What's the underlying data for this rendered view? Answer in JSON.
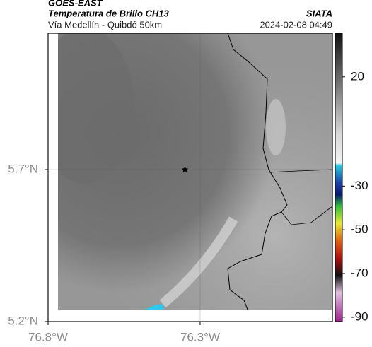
{
  "header": {
    "source": "GOES-EAST",
    "title": "Temperatura de Brillo CH13",
    "organization": "SIATA",
    "route": "Vía Medellín - Quibdó 50km",
    "timestamp": "2024-02-08 04:49"
  },
  "chart_data": {
    "type": "map",
    "xlim": [
      -76.8,
      -75.865
    ],
    "ylim": [
      5.2,
      6.149
    ],
    "xticks": [
      {
        "value": -76.8,
        "label": "76.8°W"
      },
      {
        "value": -76.3,
        "label": "76.3°W"
      }
    ],
    "yticks": [
      {
        "value": 5.2,
        "label": "5.2°N"
      },
      {
        "value": 5.7,
        "label": "5.7°N"
      }
    ],
    "grid": true,
    "marker": {
      "lon": -76.35,
      "lat": 5.7
    },
    "colorbar": {
      "lim": [
        -92,
        40
      ],
      "ticks": [
        20,
        -30,
        -50,
        -70,
        -90
      ]
    }
  }
}
